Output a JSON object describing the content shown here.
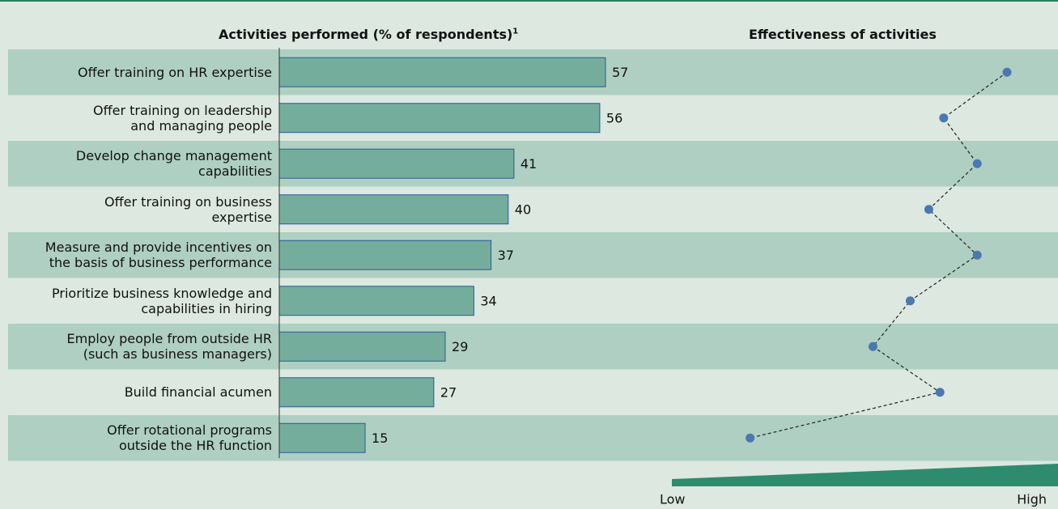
{
  "chart_data": [
    {
      "type": "hbar",
      "title": "Activities performed (% of respondents)",
      "title_note": "1",
      "categories": [
        "Offer training on HR expertise",
        "Offer training on leadership\nand managing people",
        "Develop change management\ncapabilities",
        "Offer training on business\nexpertise",
        "Measure and provide incentives on\nthe basis of business performance",
        "Prioritize business knowledge and\ncapabilities in hiring",
        "Employ people from outside HR\n(such as business managers)",
        "Build financial acumen",
        "Offer rotational programs\noutside the HR function"
      ],
      "values": [
        57,
        56,
        41,
        40,
        37,
        34,
        29,
        27,
        15
      ],
      "color": "#74ad9b",
      "xlim": [
        0,
        100
      ]
    },
    {
      "type": "dot",
      "title": "Effectiveness of activities",
      "values": [
        90,
        73,
        82,
        69,
        82,
        64,
        54,
        72,
        21
      ],
      "color": "#4a78b0",
      "xlim": [
        0,
        100
      ],
      "low_label": "Low",
      "high_label": "High"
    }
  ]
}
